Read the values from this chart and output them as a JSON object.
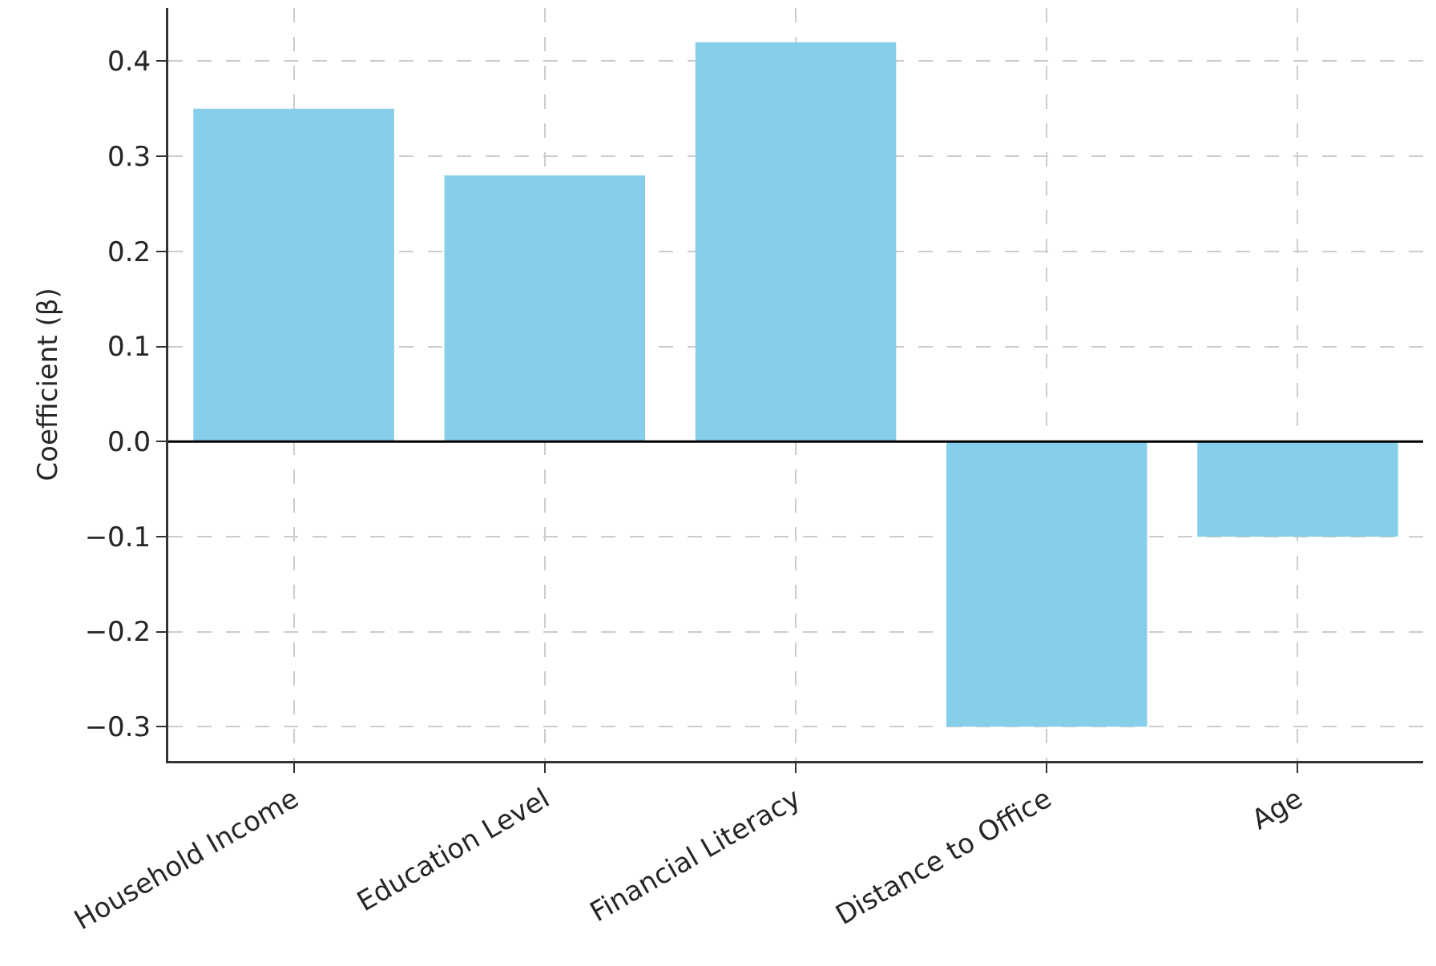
{
  "chart_data": {
    "type": "bar",
    "ylabel": "Coefficient (β)",
    "categories": [
      "Household Income",
      "Education Level",
      "Financial Literacy",
      "Distance to Office",
      "Age"
    ],
    "values": [
      0.35,
      0.28,
      0.42,
      -0.3,
      -0.1
    ],
    "color": "#87ceeb",
    "ylim": [
      -0.336,
      0.456
    ],
    "yticks": [
      {
        "value": -0.3,
        "label": "−0.3"
      },
      {
        "value": -0.2,
        "label": "−0.2"
      },
      {
        "value": -0.1,
        "label": "−0.1"
      },
      {
        "value": 0,
        "label": "0.0"
      },
      {
        "value": 0.1,
        "label": "0.1"
      },
      {
        "value": 0.2,
        "label": "0.2"
      },
      {
        "value": 0.3,
        "label": "0.3"
      },
      {
        "value": 0.4,
        "label": "0.4"
      }
    ],
    "ref_lines": [
      {
        "axis": "y",
        "value": 0,
        "color": "#000000"
      }
    ],
    "grid": true
  }
}
